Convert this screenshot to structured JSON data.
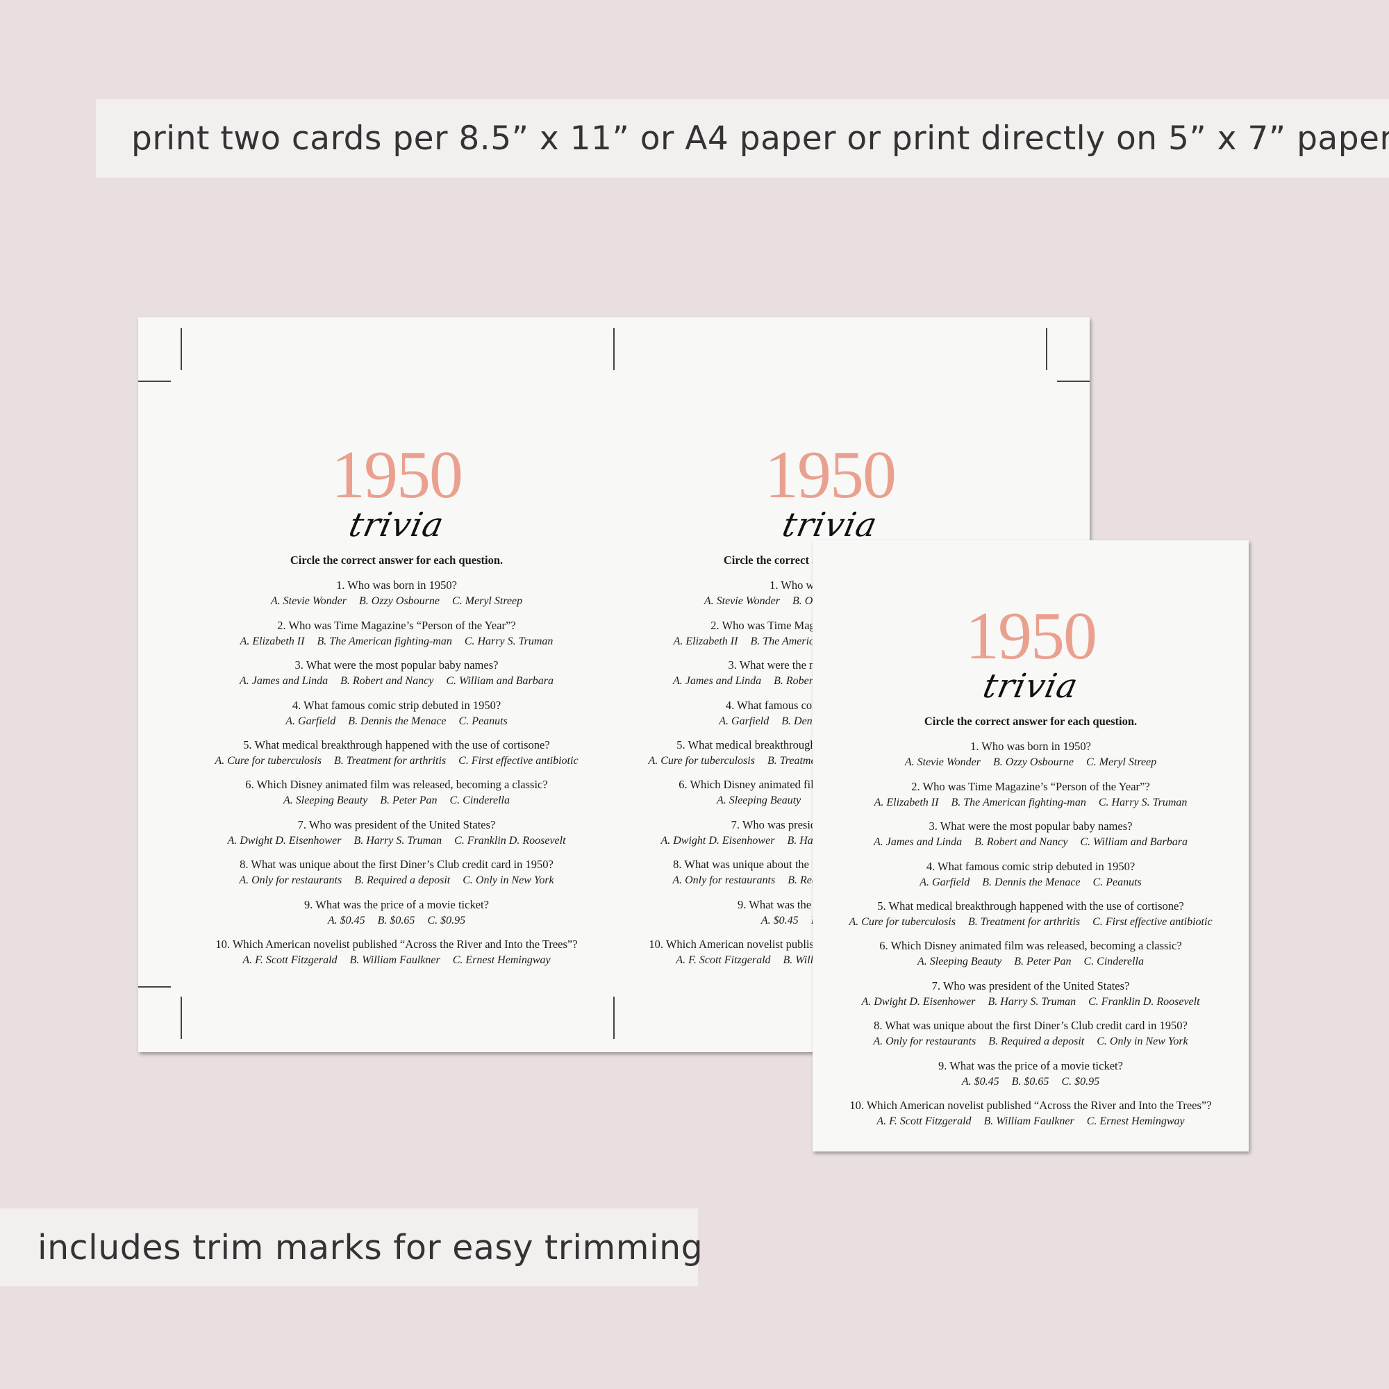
{
  "banners": {
    "top": "print two cards per 8.5” x 11” or A4 paper or print directly on 5” x 7” paper",
    "bottom": "includes trim marks for easy trimming"
  },
  "card": {
    "year": "1950",
    "subtitle": "trivia",
    "instruction": "Circle the correct answer for each question.",
    "accent_color": "#eaa08f",
    "questions": [
      {
        "q": "1. Who was born in 1950?",
        "a": [
          "A. Stevie Wonder",
          "B. Ozzy Osbourne",
          "C. Meryl Streep"
        ]
      },
      {
        "q": "2. Who was Time Magazine’s “Person of the Year”?",
        "a": [
          "A. Elizabeth II",
          "B. The American fighting-man",
          "C. Harry S. Truman"
        ]
      },
      {
        "q": "3. What were the most popular baby names?",
        "a": [
          "A. James and Linda",
          "B. Robert and Nancy",
          "C. William and Barbara"
        ]
      },
      {
        "q": "4. What famous comic strip debuted in 1950?",
        "a": [
          "A. Garfield",
          "B. Dennis the Menace",
          "C. Peanuts"
        ]
      },
      {
        "q": "5. What medical breakthrough happened with the use of cortisone?",
        "a": [
          "A.  Cure for tuberculosis",
          "B. Treatment for arthritis",
          "C. First effective antibiotic"
        ]
      },
      {
        "q": "6. Which Disney animated film was released, becoming a classic?",
        "a": [
          "A. Sleeping Beauty",
          "B. Peter Pan",
          "C. Cinderella"
        ]
      },
      {
        "q": "7. Who was president of the United States?",
        "a": [
          "A. Dwight D. Eisenhower",
          "B. Harry S. Truman",
          "C. Franklin D. Roosevelt"
        ]
      },
      {
        "q": "8. What was unique about the first Diner’s Club credit card in 1950?",
        "a": [
          "A. Only for restaurants",
          "B. Required a deposit",
          "C. Only in New York"
        ]
      },
      {
        "q": "9. What was the price of a movie ticket?",
        "a": [
          "A. $0.45",
          "B. $0.65",
          "C. $0.95"
        ]
      },
      {
        "q": "10. Which American novelist published “Across the River and Into the Trees”?",
        "a": [
          "A. F. Scott Fitzgerald",
          "B. William Faulkner",
          "C. Ernest Hemingway"
        ]
      }
    ]
  }
}
